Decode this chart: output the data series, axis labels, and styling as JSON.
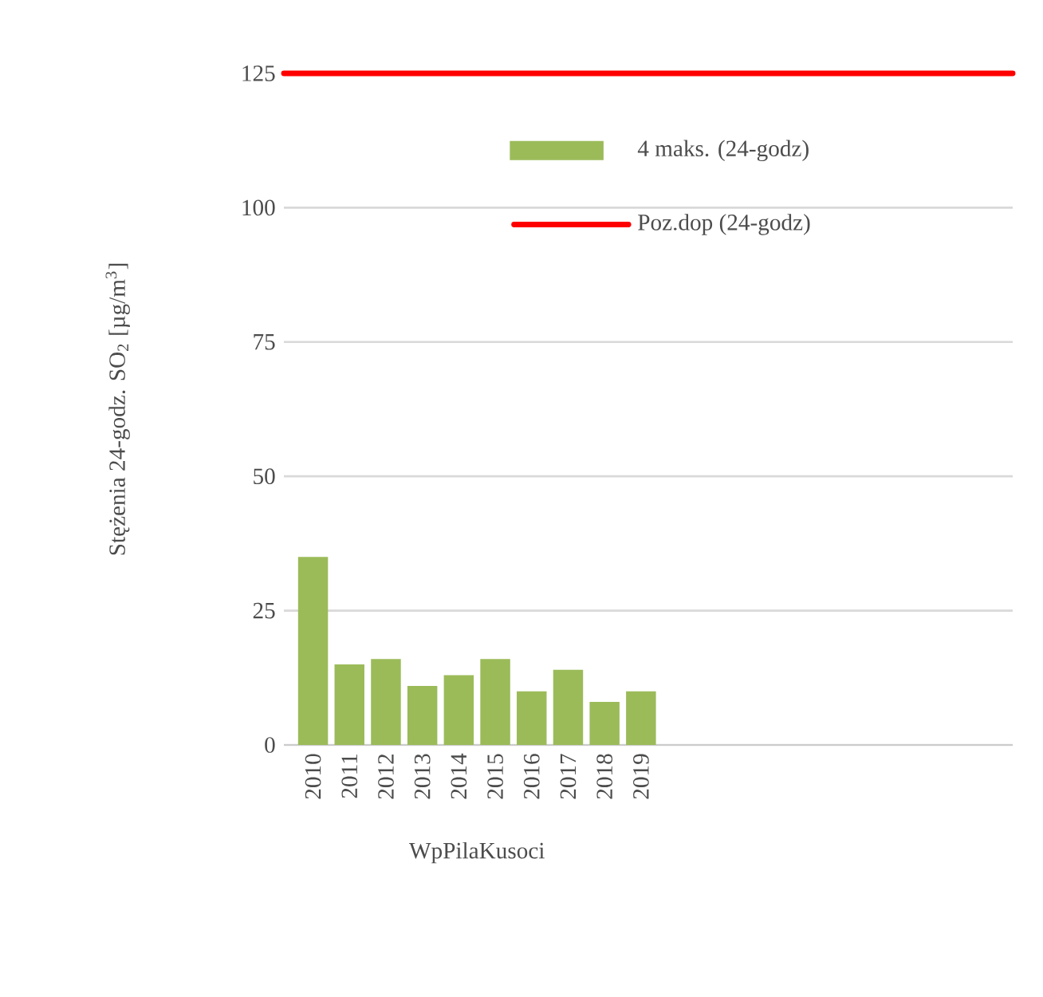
{
  "chart_data": {
    "type": "bar",
    "xlabel": "WpPilaKusoci",
    "ylabel": "Stężenia 24-godz. SO$_{2}$ [µg/m$^{3}$]",
    "categories": [
      "2010",
      "2011",
      "2012",
      "2013",
      "2014",
      "2015",
      "2016",
      "2017",
      "2018",
      "2019"
    ],
    "series": [
      {
        "name": "4 maks. (24-godz)",
        "color": "#9bbb59",
        "values": [
          35,
          15,
          16,
          11,
          13,
          16,
          10,
          14,
          8,
          10
        ]
      }
    ],
    "ref_lines": [
      {
        "axis": "y",
        "value": 125,
        "label": "Poz.dop (24-godz)",
        "color": "#ff0000"
      }
    ],
    "ylim": [
      0,
      125
    ],
    "yticks": [
      0,
      25,
      50,
      75,
      100,
      125
    ],
    "grid": "y",
    "legend": "top right"
  }
}
